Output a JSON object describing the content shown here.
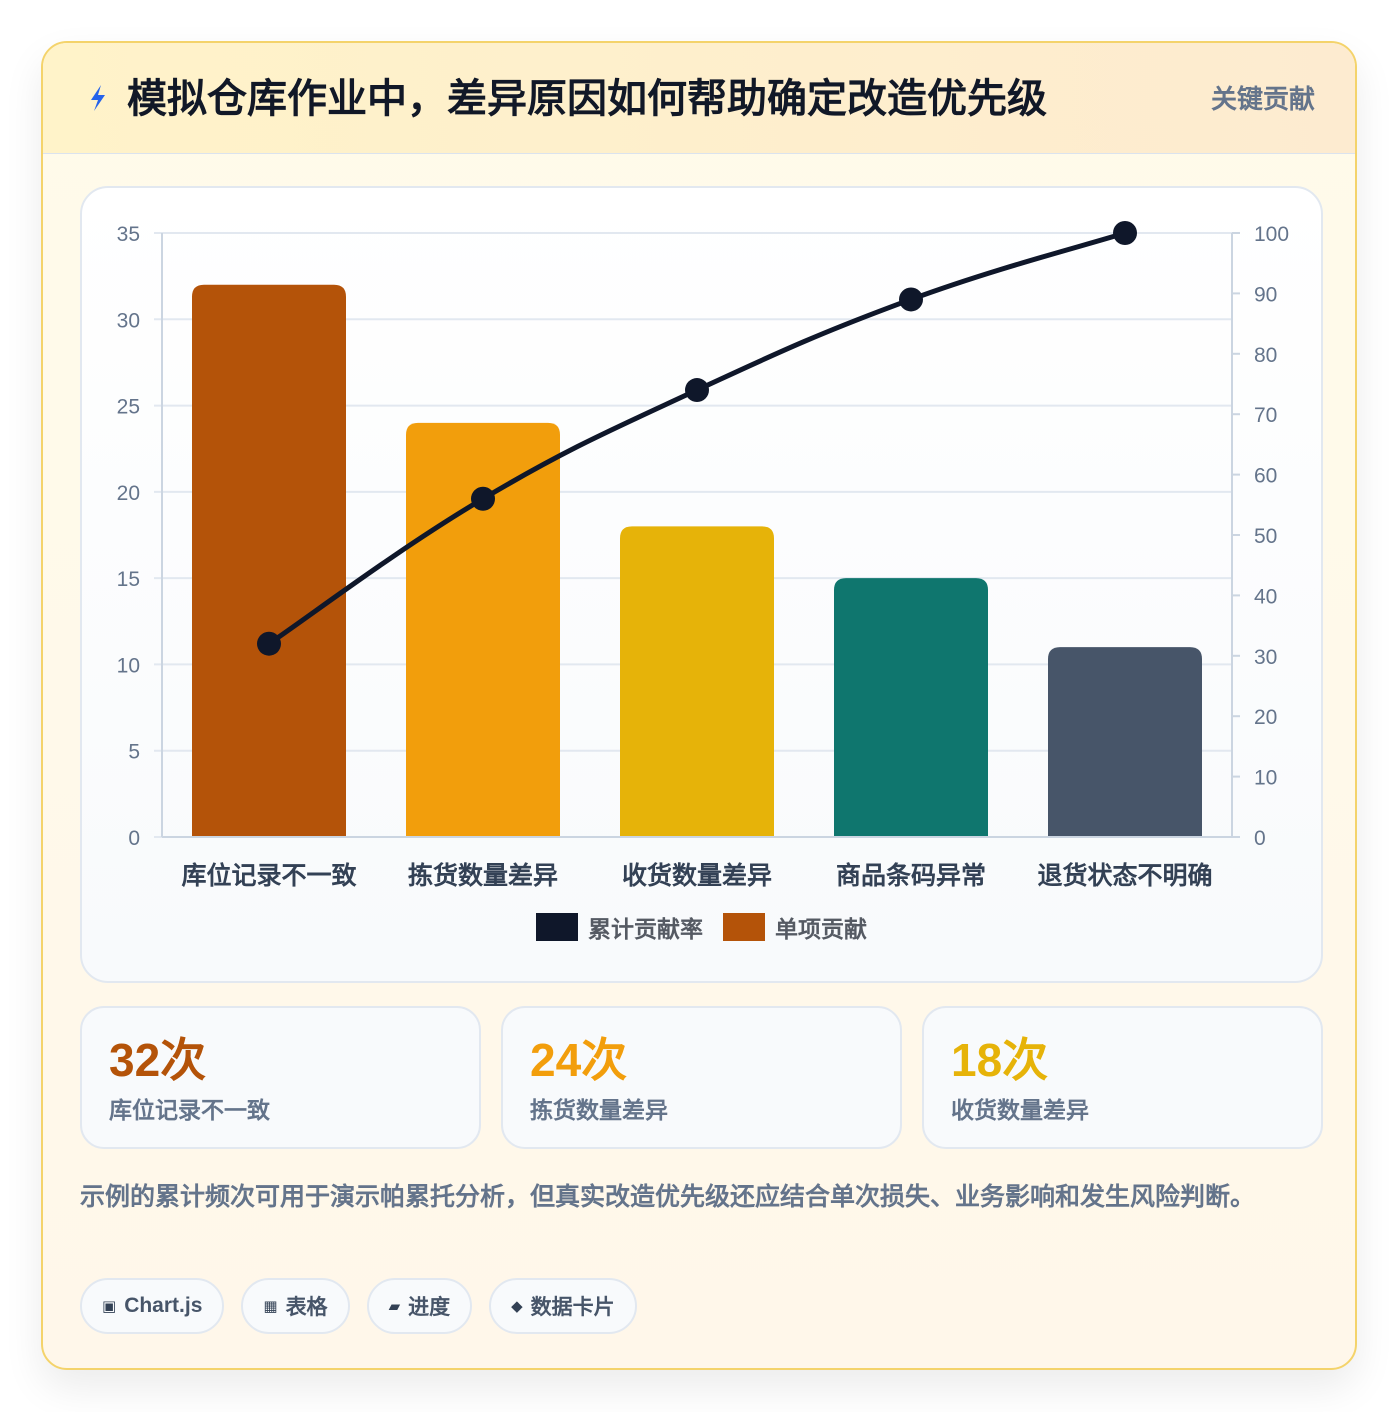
{
  "header": {
    "icon": "lightning-icon",
    "title": "模拟仓库作业中，差异原因如何帮助确定改造优先级",
    "badge": "关键贡献"
  },
  "chart_data": {
    "type": "bar",
    "categories": [
      "库位记录不一致",
      "拣货数量差异",
      "收货数量差异",
      "商品条码异常",
      "退货状态不明确"
    ],
    "series": [
      {
        "name": "单项贡献",
        "type": "bar",
        "axis": "left",
        "values": [
          32,
          24,
          18,
          15,
          11
        ],
        "colors": [
          "#b45309",
          "#f29e0c",
          "#e6b309",
          "#0f766e",
          "#475569"
        ]
      },
      {
        "name": "累计贡献率",
        "type": "line",
        "axis": "right",
        "values": [
          32,
          56,
          74,
          89,
          100
        ],
        "color": "#0f172a"
      }
    ],
    "ylim_left": [
      0,
      35
    ],
    "yticks_left": [
      0,
      5,
      10,
      15,
      20,
      25,
      30,
      35
    ],
    "ylim_right": [
      0,
      100
    ],
    "yticks_right": [
      0,
      10,
      20,
      30,
      40,
      50,
      60,
      70,
      80,
      90,
      100
    ],
    "grid": true,
    "legend_position": "bottom",
    "legend": [
      {
        "label": "累计贡献率",
        "color": "#0f172a"
      },
      {
        "label": "单项贡献",
        "color": "#b45309"
      }
    ]
  },
  "stats": [
    {
      "value": "32次",
      "label": "库位记录不一致",
      "color": "#b45309"
    },
    {
      "value": "24次",
      "label": "拣货数量差异",
      "color": "#f29e0c"
    },
    {
      "value": "18次",
      "label": "收货数量差异",
      "color": "#e6b309"
    }
  ],
  "note": "示例的累计频次可用于演示帕累托分析，但真实改造优先级还应结合单次损失、业务影响和发生风险判断。",
  "tags": [
    {
      "icon": "▣",
      "label": "Chart.js"
    },
    {
      "icon": "▦",
      "label": "表格"
    },
    {
      "icon": "▰",
      "label": "进度"
    },
    {
      "icon": "◆",
      "label": "数据卡片"
    }
  ]
}
